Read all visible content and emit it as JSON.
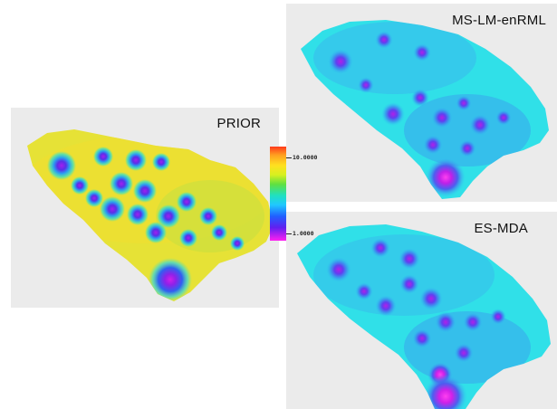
{
  "panels": {
    "prior": {
      "title": "PRIOR",
      "base_color": "#e8e638",
      "ring_color": "#58e0c8"
    },
    "ms_lm_enrml": {
      "title": "MS-LM-enRML",
      "base_color": "#30e0e8",
      "ring_color": "#3a8cf0"
    },
    "es_mda": {
      "title": "ES-MDA",
      "base_color": "#30e0e8",
      "ring_color": "#3a8cf0"
    }
  },
  "colorbar": {
    "max_label": "10.0000",
    "min_label": "1.0000",
    "colors": [
      "#ff3a1a",
      "#ffe020",
      "#60e040",
      "#20e0c0",
      "#2060ff",
      "#ff20f0"
    ]
  }
}
